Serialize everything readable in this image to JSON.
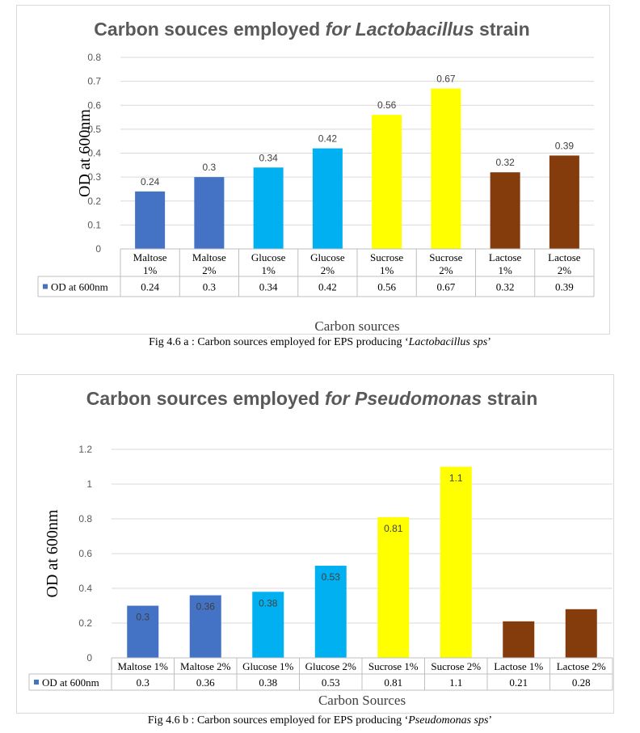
{
  "chart_data": [
    {
      "type": "bar",
      "title_main": "Carbon souces employed ",
      "title_italic": "for Lactobacillus",
      "title_tail": " strain",
      "xlabel": "Carbon sources",
      "ylabel": "OD at 600nm",
      "ylim": [
        0,
        0.8
      ],
      "yticks": [
        "0",
        "0.1",
        "0.2",
        "0.3",
        "0.4",
        "0.5",
        "0.6",
        "0.7",
        "0.8"
      ],
      "categories_line1": [
        "Maltose",
        "Maltose",
        "Glucose",
        "Glucose",
        "Sucrose",
        "Sucrose",
        "Lactose",
        "Lactose"
      ],
      "categories_line2": [
        "1%",
        "2%",
        "1%",
        "2%",
        "1%",
        "2%",
        "1%",
        "2%"
      ],
      "series": [
        {
          "name": "OD at 600nm",
          "values": [
            0.24,
            0.3,
            0.34,
            0.42,
            0.56,
            0.67,
            0.32,
            0.39
          ]
        }
      ],
      "labels": [
        "0.24",
        "0.3",
        "0.34",
        "0.42",
        "0.56",
        "0.67",
        "0.32",
        "0.39"
      ],
      "colors": [
        "#4472c4",
        "#4472c4",
        "#00b0f0",
        "#00b0f0",
        "#ffff00",
        "#ffff00",
        "#843c0c",
        "#843c0c"
      ],
      "grid": true,
      "data_table": true
    },
    {
      "type": "bar",
      "title_main": "Carbon sources employed ",
      "title_italic": "for Pseudomonas",
      "title_tail": " strain",
      "xlabel": "Carbon Sources",
      "ylabel": "OD at 600nm",
      "ylim": [
        0,
        1.2
      ],
      "yticks": [
        "0",
        "0.2",
        "0.4",
        "0.6",
        "0.8",
        "1",
        "1.2"
      ],
      "categories": [
        "Maltose 1%",
        "Maltose 2%",
        "Glucose 1%",
        "Glucose 2%",
        "Sucrose 1%",
        "Sucrose 2%",
        "Lactose 1%",
        "Lactose 2%"
      ],
      "series": [
        {
          "name": "OD at 600nm",
          "values": [
            0.3,
            0.36,
            0.38,
            0.53,
            0.81,
            1.1,
            0.21,
            0.28
          ]
        }
      ],
      "labels": [
        "0.3",
        "0.36",
        "0.38",
        "0.53",
        "0.81",
        "1.1",
        "0.21",
        "0.28"
      ],
      "colors": [
        "#4472c4",
        "#4472c4",
        "#00b0f0",
        "#00b0f0",
        "#ffff00",
        "#ffff00",
        "#843c0c",
        "#843c0c"
      ],
      "grid": true,
      "data_table": true
    }
  ],
  "captions": {
    "a_prefix": "Fig 4.6 a : Carbon sources employed for EPS producing ‘",
    "a_italic": "Lactobacillus sps",
    "a_suffix": "’",
    "b_prefix": "Fig 4.6 b : Carbon sources employed for EPS producing ‘",
    "b_italic": "Pseudomonas sps",
    "b_suffix": "’"
  }
}
